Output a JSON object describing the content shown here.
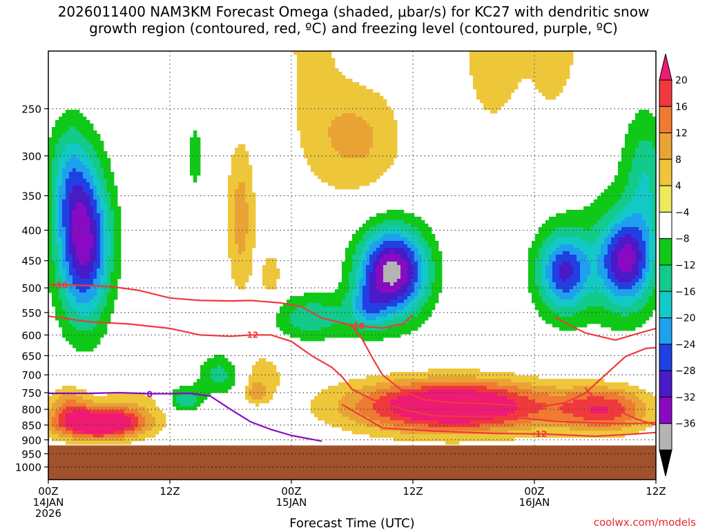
{
  "chart_data": {
    "type": "heatmap",
    "title_line1": "2026011400 NAM3KM Forecast Omega (shaded, μbar/s) for KC27 with dendritic snow",
    "title_line2": "growth region (contoured, red, ºC) and freezing level (contoured, purple, ºC)",
    "xlabel": "Forecast Time (UTC)",
    "ylabel": "",
    "x_ticks": [
      {
        "hour": 0,
        "l1": "00Z",
        "l2": "14JAN",
        "l3": "2026"
      },
      {
        "hour": 12,
        "l1": "12Z",
        "l2": "",
        "l3": ""
      },
      {
        "hour": 24,
        "l1": "00Z",
        "l2": "15JAN",
        "l3": ""
      },
      {
        "hour": 36,
        "l1": "12Z",
        "l2": "",
        "l3": ""
      },
      {
        "hour": 48,
        "l1": "00Z",
        "l2": "16JAN",
        "l3": ""
      },
      {
        "hour": 60,
        "l1": "12Z",
        "l2": "",
        "l3": ""
      }
    ],
    "xlim": [
      0,
      60
    ],
    "y_ticks": [
      "250",
      "300",
      "350",
      "400",
      "450",
      "500",
      "550",
      "600",
      "650",
      "700",
      "750",
      "800",
      "850",
      "900",
      "950",
      "1000"
    ],
    "ylim_hPa": [
      1050,
      200
    ],
    "colorbar": {
      "labels": [
        "20",
        "16",
        "12",
        "8",
        "4",
        "−4",
        "−8",
        "−12",
        "−16",
        "−20",
        "−24",
        "−28",
        "−32",
        "−36"
      ],
      "colors": [
        "#ee1a73",
        "#f0393c",
        "#ef7a32",
        "#e9a334",
        "#eec63a",
        "#eeea5e",
        "#ffffff",
        "#10c818",
        "#12ca8a",
        "#14c8c8",
        "#1ea0ee",
        "#2040e4",
        "#4a1ac8",
        "#8a0ac4",
        "#b4b4b4",
        "#000000"
      ]
    },
    "omega_levels": [
      {
        "value": 4,
        "color": "#eeea5e"
      },
      {
        "value": -4,
        "color": "#10c818"
      },
      {
        "value": -8,
        "color": "#12ca8a"
      },
      {
        "value": -12,
        "color": "#14c8c8"
      },
      {
        "value": -16,
        "color": "#1ea0ee"
      },
      {
        "value": -20,
        "color": "#2040e4"
      },
      {
        "value": -24,
        "color": "#4a1ac8"
      },
      {
        "value": -28,
        "color": "#8a0ac4"
      },
      {
        "value": -32,
        "color": "#b4b4b4"
      },
      {
        "value": 8,
        "color": "#e9a334"
      },
      {
        "value": 12,
        "color": "#ef7a32"
      },
      {
        "value": 16,
        "color": "#f0393c"
      },
      {
        "value": 20,
        "color": "#ee1a73"
      }
    ],
    "ground_color": "#a0522d",
    "ground_pressure": 920,
    "dendritic_color": "#f0393c",
    "freezing_color": "#8a0ac4",
    "dendritic_contours": [
      {
        "label": "-18",
        "label_at": [
          1.2,
          495
        ],
        "points": [
          [
            0,
            493
          ],
          [
            3,
            495
          ],
          [
            6,
            497
          ],
          [
            9,
            505
          ],
          [
            12,
            520
          ],
          [
            15,
            525
          ],
          [
            18,
            526
          ],
          [
            20,
            525
          ],
          [
            23,
            530
          ],
          [
            25,
            538
          ],
          [
            27,
            562
          ],
          [
            30,
            578
          ],
          [
            33,
            584
          ],
          [
            35,
            575
          ],
          [
            36,
            555
          ]
        ]
      },
      {
        "label": "-12",
        "label_at": [
          20,
          600
        ],
        "points": [
          [
            0,
            558
          ],
          [
            4,
            570
          ],
          [
            8,
            575
          ],
          [
            12,
            585
          ],
          [
            15,
            600
          ],
          [
            18,
            603
          ],
          [
            20,
            600
          ],
          [
            22,
            600
          ],
          [
            24,
            615
          ],
          [
            26,
            650
          ],
          [
            28,
            680
          ],
          [
            29,
            705
          ],
          [
            30,
            740
          ],
          [
            32,
            770
          ],
          [
            35,
            800
          ],
          [
            38,
            820
          ],
          [
            41,
            823
          ],
          [
            44,
            822
          ],
          [
            47,
            828
          ],
          [
            50,
            838
          ],
          [
            53,
            842
          ],
          [
            56,
            845
          ],
          [
            58,
            845
          ],
          [
            60,
            842
          ]
        ]
      },
      {
        "label": "-18",
        "label_at": [
          30.5,
          580
        ],
        "points": [
          [
            30,
            580
          ],
          [
            31,
            610
          ],
          [
            32,
            655
          ],
          [
            33,
            700
          ],
          [
            35,
            745
          ],
          [
            37,
            770
          ],
          [
            40,
            780
          ],
          [
            43,
            782
          ],
          [
            46,
            788
          ],
          [
            49,
            790
          ]
        ]
      },
      {
        "label": "-18",
        "label_at": [
          48.5,
          790
        ],
        "points": [
          [
            49,
            790
          ],
          [
            51,
            780
          ],
          [
            53,
            752
          ],
          [
            55,
            700
          ],
          [
            57,
            652
          ],
          [
            59,
            632
          ],
          [
            60,
            630
          ]
        ]
      },
      {
        "label": "-12",
        "label_at": [
          48.5,
          880
        ],
        "points": [
          [
            29,
            785
          ],
          [
            33,
            860
          ],
          [
            38,
            870
          ],
          [
            44,
            878
          ],
          [
            49,
            880
          ],
          [
            54,
            888
          ],
          [
            58,
            880
          ],
          [
            60,
            875
          ]
        ]
      },
      {
        "label": "",
        "label_at": [
          0,
          0
        ],
        "points": [
          [
            53,
            735
          ],
          [
            54,
            770
          ],
          [
            56,
            800
          ],
          [
            58,
            830
          ],
          [
            60,
            850
          ]
        ]
      },
      {
        "label": "",
        "label_at": [
          0,
          0
        ],
        "points": [
          [
            50,
            560
          ],
          [
            53,
            595
          ],
          [
            56,
            612
          ],
          [
            58,
            598
          ],
          [
            60,
            585
          ]
        ]
      }
    ],
    "freezing_contour": {
      "label": "0",
      "label_at": [
        10,
        755
      ],
      "points": [
        [
          0,
          752
        ],
        [
          4,
          752
        ],
        [
          7,
          750
        ],
        [
          10,
          753
        ],
        [
          12,
          753
        ],
        [
          14,
          752
        ],
        [
          16,
          760
        ],
        [
          18,
          800
        ],
        [
          20,
          840
        ],
        [
          22,
          865
        ],
        [
          24,
          885
        ],
        [
          27,
          905
        ]
      ]
    }
  }
}
